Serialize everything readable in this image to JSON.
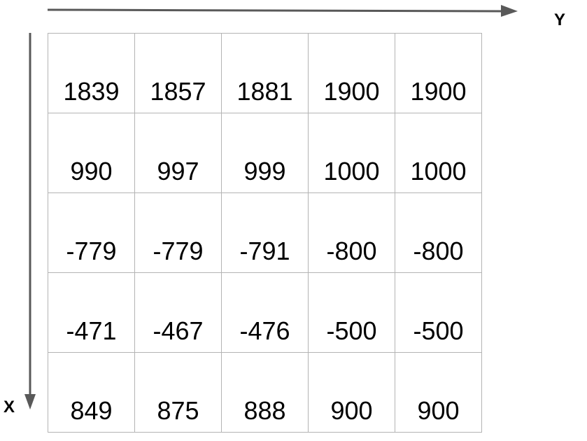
{
  "axis_labels": {
    "horizontal": "Y",
    "vertical": "X"
  },
  "colors": {
    "axis_arrow": "#595959",
    "grid_line": "#b4b4b4",
    "text": "#000000"
  },
  "matrix": [
    [
      "1839",
      "1857",
      "1881",
      "1900",
      "1900"
    ],
    [
      "990",
      "997",
      "999",
      "1000",
      "1000"
    ],
    [
      "-779",
      "-779",
      "-791",
      "-800",
      "-800"
    ],
    [
      "-471",
      "-467",
      "-476",
      "-500",
      "-500"
    ],
    [
      "849",
      "875",
      "888",
      "900",
      "900"
    ]
  ]
}
